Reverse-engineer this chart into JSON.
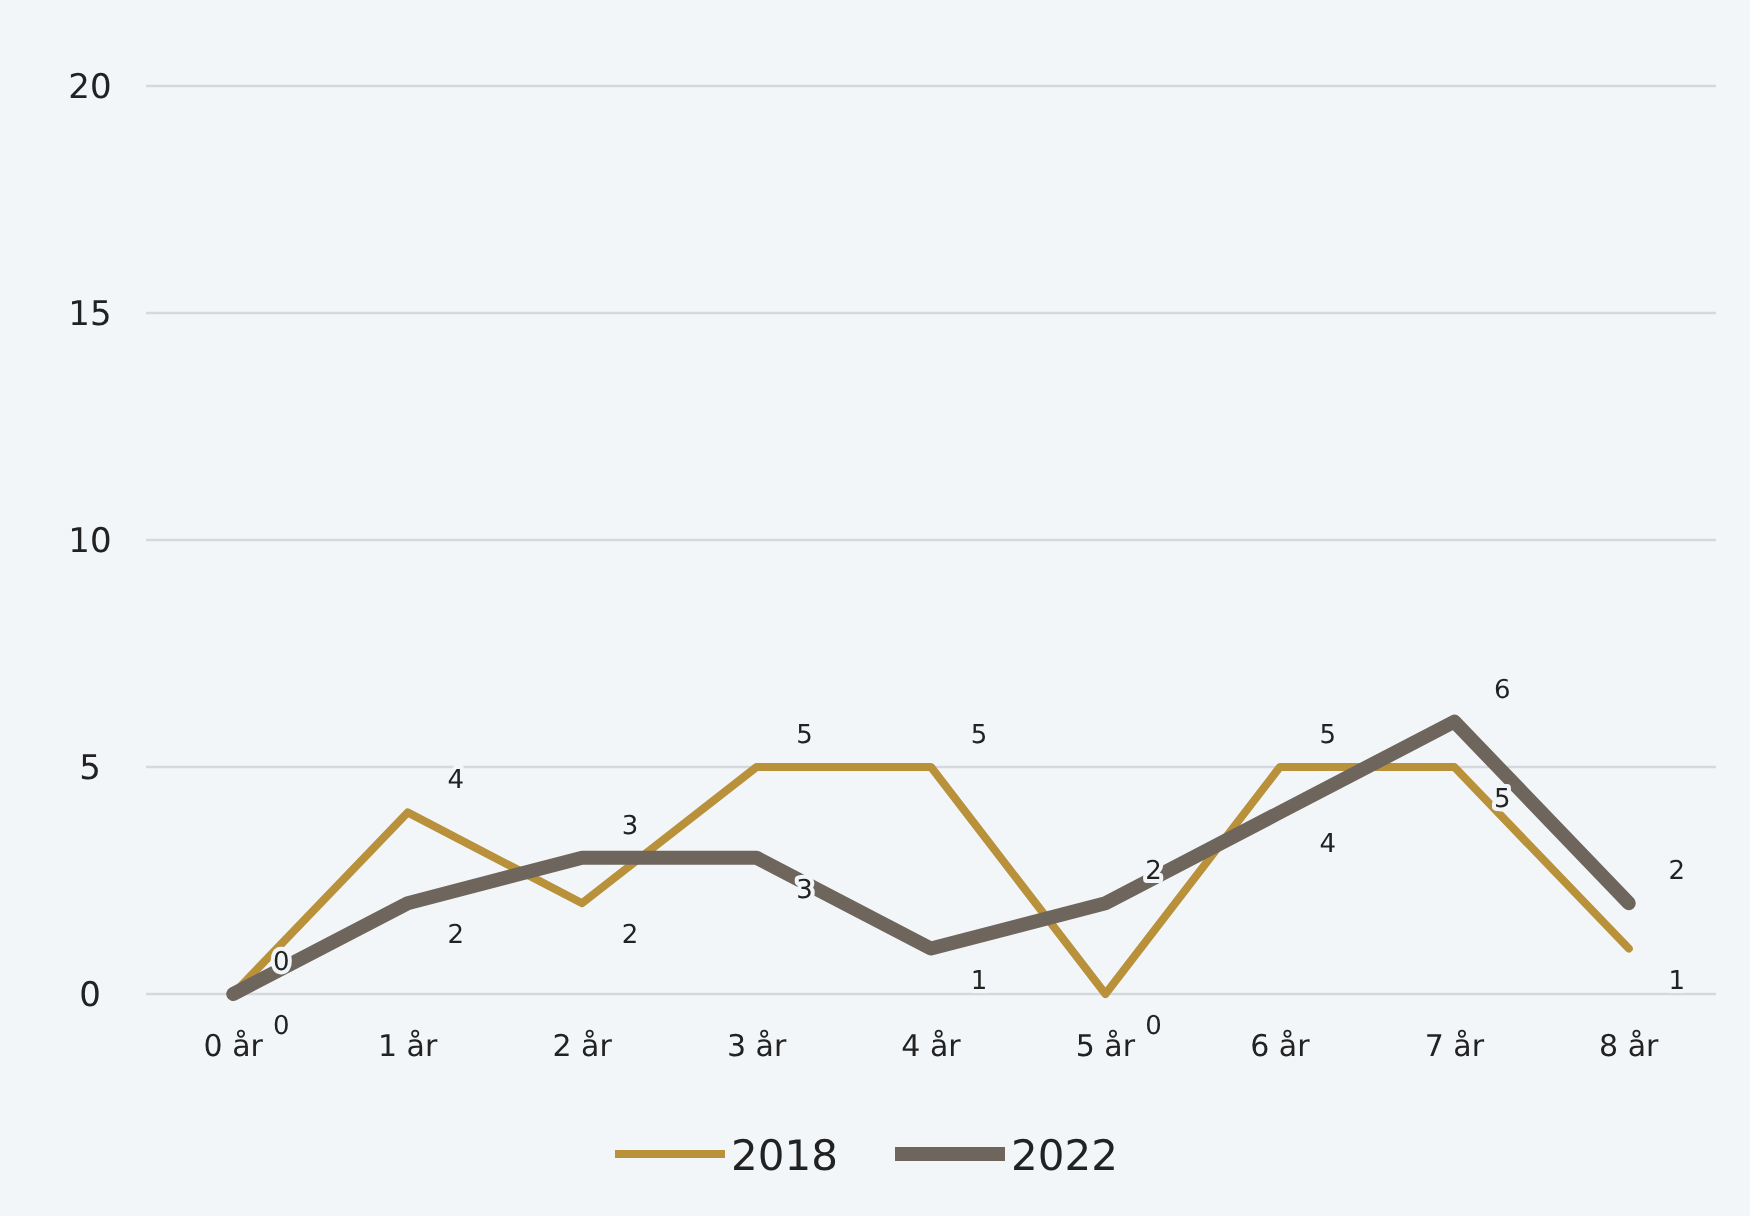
{
  "chart_data": {
    "type": "line",
    "categories": [
      "0 år",
      "1 år",
      "2 år",
      "3 år",
      "4 år",
      "5 år",
      "6 år",
      "7 år",
      "8 år"
    ],
    "series": [
      {
        "name": "2018",
        "color": "#b8913a",
        "values": [
          0,
          4,
          2,
          5,
          5,
          0,
          5,
          5,
          1
        ]
      },
      {
        "name": "2022",
        "color": "#6e665d",
        "values": [
          0,
          2,
          3,
          3,
          1,
          2,
          4,
          6,
          2
        ]
      }
    ],
    "ylim": [
      0,
      20
    ],
    "yticks": [
      0,
      5,
      10,
      15,
      20
    ],
    "grid": "y",
    "legend": "bottom",
    "data_labels": true,
    "marker": "none",
    "line_style": "solid"
  }
}
